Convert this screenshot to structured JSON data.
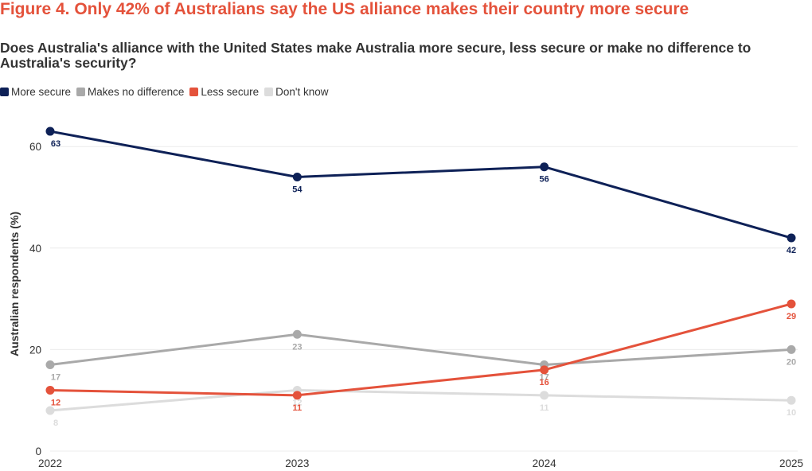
{
  "title": "Figure 4. Only 42% of Australians say the US alliance makes their country more secure",
  "question": "Does Australia's alliance with the United States make Australia more secure, less secure or make no difference to Australia's security?",
  "chart_data": {
    "type": "line",
    "x": [
      "2022",
      "2023",
      "2024",
      "2025"
    ],
    "ylabel": "Australian respondents (%)",
    "xlabel": "",
    "ylim": [
      0,
      65
    ],
    "yticks": [
      0,
      20,
      40,
      60
    ],
    "grid": true,
    "legend_position": "top-left",
    "series": [
      {
        "name": "Don't know",
        "color": "#dcdcdc",
        "values": [
          8,
          12,
          11,
          10
        ]
      },
      {
        "name": "Makes no difference",
        "color": "#a9a9a9",
        "values": [
          17,
          23,
          17,
          20
        ]
      },
      {
        "name": "Less secure",
        "color": "#e4523b",
        "values": [
          12,
          11,
          16,
          29
        ]
      },
      {
        "name": "More secure",
        "color": "#0e2157",
        "values": [
          63,
          54,
          56,
          42
        ]
      }
    ],
    "legend_order": [
      "More secure",
      "Makes no difference",
      "Less secure",
      "Don't know"
    ]
  }
}
